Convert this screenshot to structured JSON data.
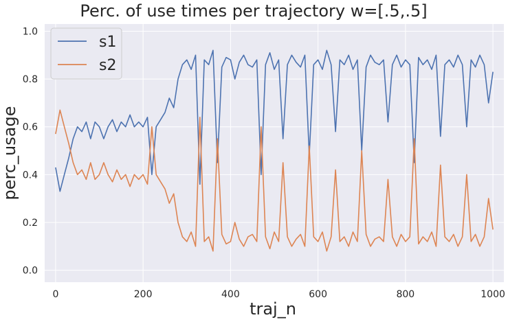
{
  "chart_data": {
    "type": "line",
    "title": "Perc. of use times per trajectory w=[.5,.5]",
    "xlabel": "traj_n",
    "ylabel": "perc_usage",
    "xlim": [
      -25,
      1025
    ],
    "ylim": [
      -0.05,
      1.03
    ],
    "xticks": [
      "0",
      "200",
      "400",
      "600",
      "800",
      "1000"
    ],
    "yticks": [
      "0.0",
      "0.2",
      "0.4",
      "0.6",
      "0.8",
      "1.0"
    ],
    "grid": true,
    "legend": "top-left",
    "background": "#eaeaf2",
    "series": [
      {
        "name": "s1",
        "color": "#4c72b0",
        "x": [
          0,
          10,
          20,
          30,
          40,
          50,
          60,
          70,
          80,
          90,
          100,
          110,
          120,
          130,
          140,
          150,
          160,
          170,
          180,
          190,
          200,
          210,
          220,
          230,
          240,
          250,
          260,
          270,
          280,
          290,
          300,
          310,
          320,
          330,
          340,
          350,
          360,
          370,
          380,
          390,
          400,
          410,
          420,
          430,
          440,
          450,
          460,
          470,
          480,
          490,
          500,
          510,
          520,
          530,
          540,
          550,
          560,
          570,
          580,
          590,
          600,
          610,
          620,
          630,
          640,
          650,
          660,
          670,
          680,
          690,
          700,
          710,
          720,
          730,
          740,
          750,
          760,
          770,
          780,
          790,
          800,
          810,
          820,
          830,
          840,
          850,
          860,
          870,
          880,
          890,
          900,
          910,
          920,
          930,
          940,
          950,
          960,
          970,
          980,
          990,
          1000
        ],
        "values": [
          0.43,
          0.33,
          0.4,
          0.47,
          0.55,
          0.6,
          0.58,
          0.62,
          0.55,
          0.62,
          0.6,
          0.55,
          0.6,
          0.63,
          0.58,
          0.62,
          0.6,
          0.65,
          0.6,
          0.62,
          0.6,
          0.64,
          0.4,
          0.6,
          0.63,
          0.66,
          0.72,
          0.68,
          0.8,
          0.86,
          0.88,
          0.84,
          0.9,
          0.36,
          0.88,
          0.86,
          0.92,
          0.45,
          0.85,
          0.89,
          0.88,
          0.8,
          0.87,
          0.9,
          0.86,
          0.85,
          0.88,
          0.4,
          0.86,
          0.91,
          0.84,
          0.88,
          0.55,
          0.86,
          0.9,
          0.87,
          0.85,
          0.9,
          0.48,
          0.86,
          0.88,
          0.84,
          0.92,
          0.86,
          0.58,
          0.88,
          0.86,
          0.9,
          0.84,
          0.88,
          0.5,
          0.85,
          0.9,
          0.87,
          0.86,
          0.88,
          0.62,
          0.86,
          0.9,
          0.85,
          0.88,
          0.86,
          0.45,
          0.89,
          0.86,
          0.88,
          0.84,
          0.9,
          0.56,
          0.86,
          0.88,
          0.85,
          0.9,
          0.86,
          0.6,
          0.88,
          0.85,
          0.9,
          0.86,
          0.7,
          0.83
        ]
      },
      {
        "name": "s2",
        "color": "#dd8452",
        "x": [
          0,
          10,
          20,
          30,
          40,
          50,
          60,
          70,
          80,
          90,
          100,
          110,
          120,
          130,
          140,
          150,
          160,
          170,
          180,
          190,
          200,
          210,
          220,
          230,
          240,
          250,
          260,
          270,
          280,
          290,
          300,
          310,
          320,
          330,
          340,
          350,
          360,
          370,
          380,
          390,
          400,
          410,
          420,
          430,
          440,
          450,
          460,
          470,
          480,
          490,
          500,
          510,
          520,
          530,
          540,
          550,
          560,
          570,
          580,
          590,
          600,
          610,
          620,
          630,
          640,
          650,
          660,
          670,
          680,
          690,
          700,
          710,
          720,
          730,
          740,
          750,
          760,
          770,
          780,
          790,
          800,
          810,
          820,
          830,
          840,
          850,
          860,
          870,
          880,
          890,
          900,
          910,
          920,
          930,
          940,
          950,
          960,
          970,
          980,
          990,
          1000
        ],
        "values": [
          0.57,
          0.67,
          0.6,
          0.53,
          0.45,
          0.4,
          0.42,
          0.38,
          0.45,
          0.38,
          0.4,
          0.45,
          0.4,
          0.37,
          0.42,
          0.38,
          0.4,
          0.35,
          0.4,
          0.38,
          0.4,
          0.36,
          0.6,
          0.4,
          0.37,
          0.34,
          0.28,
          0.32,
          0.2,
          0.14,
          0.12,
          0.16,
          0.1,
          0.64,
          0.12,
          0.14,
          0.08,
          0.55,
          0.15,
          0.11,
          0.12,
          0.2,
          0.13,
          0.1,
          0.14,
          0.15,
          0.12,
          0.6,
          0.14,
          0.09,
          0.16,
          0.12,
          0.45,
          0.14,
          0.1,
          0.13,
          0.15,
          0.1,
          0.52,
          0.14,
          0.12,
          0.16,
          0.08,
          0.14,
          0.42,
          0.12,
          0.14,
          0.1,
          0.16,
          0.12,
          0.5,
          0.15,
          0.1,
          0.13,
          0.14,
          0.12,
          0.38,
          0.14,
          0.1,
          0.15,
          0.12,
          0.14,
          0.55,
          0.11,
          0.14,
          0.12,
          0.16,
          0.1,
          0.44,
          0.14,
          0.12,
          0.15,
          0.1,
          0.14,
          0.4,
          0.12,
          0.15,
          0.1,
          0.14,
          0.3,
          0.17
        ]
      }
    ]
  }
}
